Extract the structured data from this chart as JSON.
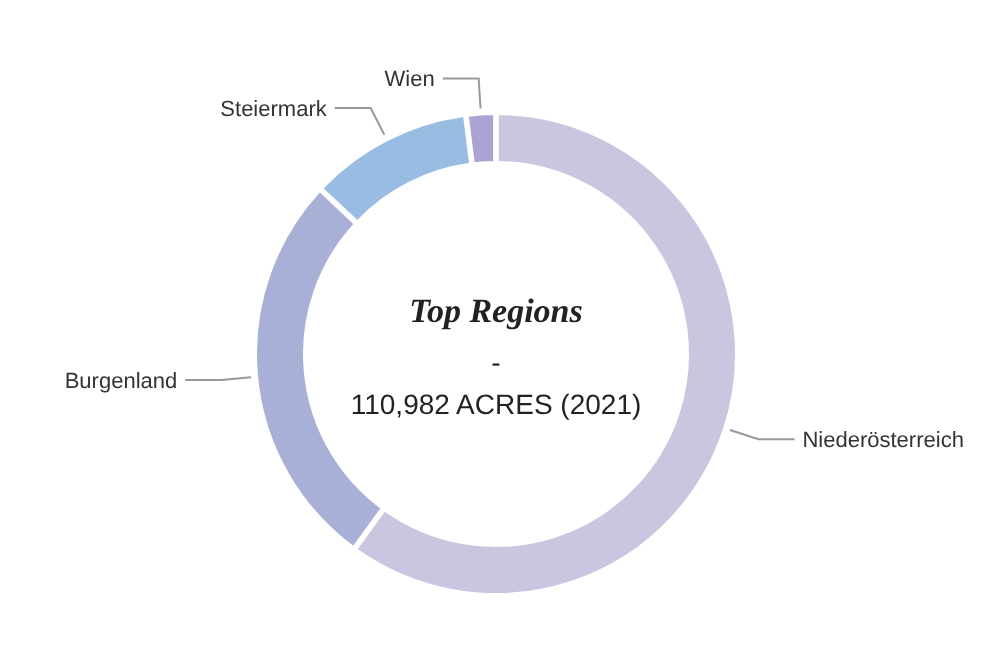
{
  "chart_data": {
    "type": "donut",
    "title": "Top Regions",
    "annotations": [
      "-",
      "110,982 ACRES (2021)"
    ],
    "categories": [
      "Niederösterreich",
      "Burgenland",
      "Steiermark",
      "Wien"
    ],
    "values": [
      60,
      27,
      11,
      2
    ],
    "colors": [
      "#cbc5e0",
      "#a9b0d8",
      "#98bce2",
      "#a9a4d4"
    ]
  }
}
